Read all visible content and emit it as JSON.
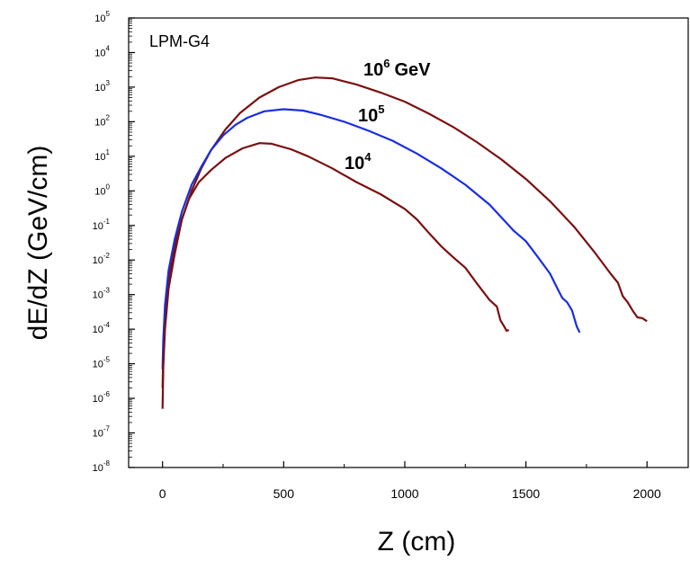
{
  "chart_data": {
    "type": "line",
    "title": "LPM-G4",
    "xlabel": "Z  (cm)",
    "ylabel": "dE/dZ  (GeV/cm)",
    "xlim": [
      -140,
      2170
    ],
    "ylim_log10": [
      -8,
      5
    ],
    "y_scale": "log",
    "x_ticks": [
      0,
      500,
      1000,
      1500,
      2000
    ],
    "x_tick_labels": [
      "0",
      "500",
      "1000",
      "1500",
      "2000"
    ],
    "y_tick_base": "10",
    "y_tick_exponents": [
      "-8",
      "-7",
      "-6",
      "-5",
      "-4",
      "-3",
      "-2",
      "-1",
      "0",
      "1",
      "2",
      "3",
      "4",
      "5"
    ],
    "grid": false,
    "series": [
      {
        "name": "10^6 GeV",
        "label_base": "10",
        "label_exp": "6",
        "label_suffix": "GeV",
        "color": "#7a1010",
        "points": [
          [
            0,
            2e-06
          ],
          [
            3,
            2e-05
          ],
          [
            10,
            0.0003
          ],
          [
            25,
            0.003
          ],
          [
            50,
            0.025
          ],
          [
            80,
            0.15
          ],
          [
            120,
            1.0
          ],
          [
            160,
            4.5
          ],
          [
            200,
            15
          ],
          [
            260,
            60
          ],
          [
            320,
            180
          ],
          [
            400,
            500
          ],
          [
            480,
            1000
          ],
          [
            560,
            1600
          ],
          [
            630,
            1900
          ],
          [
            700,
            1800
          ],
          [
            800,
            1200
          ],
          [
            900,
            700
          ],
          [
            1000,
            380
          ],
          [
            1100,
            170
          ],
          [
            1200,
            70
          ],
          [
            1300,
            25
          ],
          [
            1400,
            8
          ],
          [
            1500,
            2.2
          ],
          [
            1600,
            0.5
          ],
          [
            1700,
            0.09
          ],
          [
            1780,
            0.018
          ],
          [
            1850,
            0.004
          ],
          [
            1880,
            0.0022
          ],
          [
            1900,
            0.0009
          ],
          [
            1920,
            0.0006
          ],
          [
            1940,
            0.00035
          ],
          [
            1960,
            0.00022
          ],
          [
            1980,
            0.00021
          ],
          [
            2000,
            0.00017
          ]
        ]
      },
      {
        "name": "10^5",
        "label_base": "10",
        "label_exp": "5",
        "label_suffix": "",
        "color": "#1a2ee0",
        "points": [
          [
            0,
            7e-06
          ],
          [
            3,
            5e-05
          ],
          [
            10,
            0.0005
          ],
          [
            25,
            0.005
          ],
          [
            50,
            0.04
          ],
          [
            80,
            0.25
          ],
          [
            120,
            1.5
          ],
          [
            160,
            5
          ],
          [
            200,
            15
          ],
          [
            250,
            40
          ],
          [
            300,
            80
          ],
          [
            350,
            130
          ],
          [
            420,
            200
          ],
          [
            500,
            230
          ],
          [
            580,
            210
          ],
          [
            650,
            160
          ],
          [
            750,
            100
          ],
          [
            850,
            55
          ],
          [
            950,
            28
          ],
          [
            1050,
            12
          ],
          [
            1150,
            4.5
          ],
          [
            1250,
            1.5
          ],
          [
            1350,
            0.4
          ],
          [
            1450,
            0.07
          ],
          [
            1500,
            0.035
          ],
          [
            1550,
            0.012
          ],
          [
            1600,
            0.004
          ],
          [
            1630,
            0.0015
          ],
          [
            1650,
            0.0008
          ],
          [
            1670,
            0.0006
          ],
          [
            1690,
            0.00035
          ],
          [
            1710,
            0.00012
          ],
          [
            1722,
            8e-05
          ]
        ]
      },
      {
        "name": "10^4",
        "label_base": "10",
        "label_exp": "4",
        "label_suffix": "",
        "color": "#7a1010",
        "points": [
          [
            0,
            5e-07
          ],
          [
            3,
            8e-06
          ],
          [
            10,
            0.0001
          ],
          [
            25,
            0.0015
          ],
          [
            50,
            0.015
          ],
          [
            80,
            0.15
          ],
          [
            110,
            0.6
          ],
          [
            150,
            1.8
          ],
          [
            200,
            4
          ],
          [
            260,
            9
          ],
          [
            330,
            17
          ],
          [
            400,
            24
          ],
          [
            450,
            23
          ],
          [
            530,
            16
          ],
          [
            600,
            10
          ],
          [
            700,
            4.5
          ],
          [
            800,
            1.8
          ],
          [
            900,
            0.8
          ],
          [
            1000,
            0.3
          ],
          [
            1050,
            0.15
          ],
          [
            1100,
            0.06
          ],
          [
            1150,
            0.025
          ],
          [
            1200,
            0.012
          ],
          [
            1250,
            0.006
          ],
          [
            1300,
            0.002
          ],
          [
            1350,
            0.0007
          ],
          [
            1380,
            0.00045
          ],
          [
            1395,
            0.00018
          ],
          [
            1410,
            0.00012
          ],
          [
            1420,
            9e-05
          ],
          [
            1430,
            9.5e-05
          ]
        ]
      }
    ]
  }
}
